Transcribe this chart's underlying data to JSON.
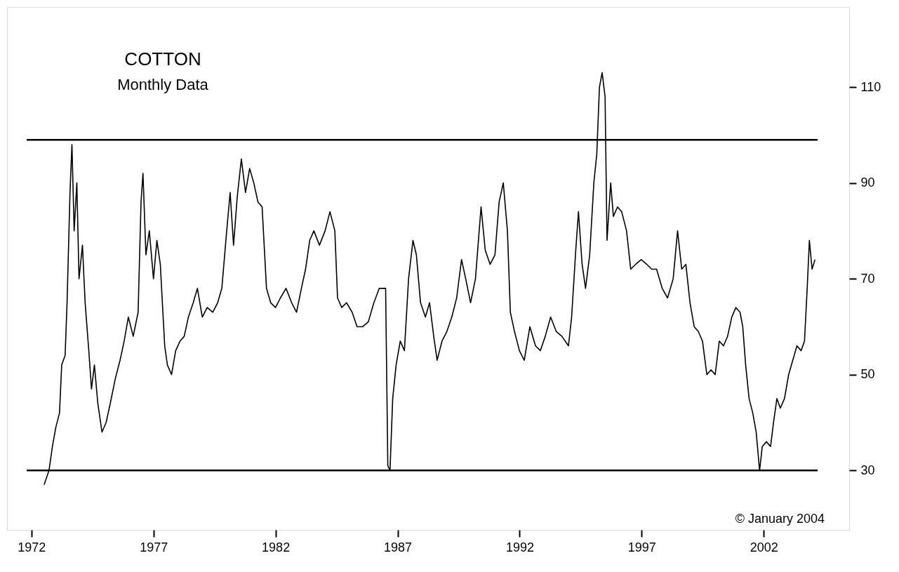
{
  "chart_data": {
    "type": "line",
    "title": "COTTON",
    "subtitle": "Monthly Data",
    "annotations": [
      "© January 2004"
    ],
    "x": [
      1972.52,
      1972.72,
      1972.86,
      1973.0,
      1973.15,
      1973.24,
      1973.38,
      1973.46,
      1973.58,
      1973.66,
      1973.75,
      1973.86,
      1973.95,
      1974.09,
      1974.2,
      1974.35,
      1974.46,
      1974.58,
      1974.72,
      1974.89,
      1975.06,
      1975.23,
      1975.43,
      1975.63,
      1975.8,
      1975.97,
      1976.17,
      1976.37,
      1976.49,
      1976.57,
      1976.69,
      1976.83,
      1977.0,
      1977.14,
      1977.28,
      1977.46,
      1977.57,
      1977.74,
      1977.91,
      1978.09,
      1978.26,
      1978.43,
      1978.63,
      1978.8,
      1979.0,
      1979.2,
      1979.43,
      1979.63,
      1979.8,
      1980.0,
      1980.14,
      1980.28,
      1980.43,
      1980.6,
      1980.77,
      1980.94,
      1981.11,
      1981.28,
      1981.45,
      1981.63,
      1981.8,
      1982.0,
      1982.2,
      1982.43,
      1982.66,
      1982.86,
      1983.06,
      1983.23,
      1983.4,
      1983.57,
      1983.8,
      1984.03,
      1984.23,
      1984.43,
      1984.54,
      1984.71,
      1984.91,
      1985.14,
      1985.34,
      1985.57,
      1985.8,
      1986.03,
      1986.25,
      1986.51,
      1986.6,
      1986.69,
      1986.8,
      1986.94,
      1987.11,
      1987.28,
      1987.45,
      1987.63,
      1987.77,
      1987.94,
      1988.14,
      1988.31,
      1988.48,
      1988.62,
      1988.82,
      1989.02,
      1989.22,
      1989.42,
      1989.62,
      1989.79,
      1989.99,
      1990.19,
      1990.42,
      1990.59,
      1990.79,
      1990.99,
      1991.16,
      1991.33,
      1991.5,
      1991.62,
      1991.79,
      1991.99,
      1992.19,
      1992.42,
      1992.65,
      1992.85,
      1993.05,
      1993.27,
      1993.5,
      1993.73,
      1994.0,
      1994.13,
      1994.3,
      1994.41,
      1994.56,
      1994.7,
      1994.87,
      1995.04,
      1995.16,
      1995.27,
      1995.38,
      1995.5,
      1995.58,
      1995.73,
      1995.84,
      1996.01,
      1996.18,
      1996.38,
      1996.55,
      1996.75,
      1996.98,
      1997.21,
      1997.41,
      1997.61,
      1997.84,
      1998.06,
      1998.29,
      1998.47,
      1998.64,
      1998.81,
      1998.98,
      1999.15,
      1999.32,
      1999.49,
      1999.67,
      1999.84,
      2000.01,
      2000.18,
      2000.35,
      2000.52,
      2000.69,
      2000.86,
      2001.03,
      2001.14,
      2001.26,
      2001.4,
      2001.55,
      2001.69,
      2001.83,
      2001.94,
      2002.11,
      2002.28,
      2002.4,
      2002.54,
      2002.68,
      2002.85,
      2003.02,
      2003.19,
      2003.36,
      2003.53,
      2003.67,
      2003.78,
      2003.87,
      2003.98,
      2004.1
    ],
    "series": [
      {
        "color": "#000000",
        "line_style": "solid",
        "values": [
          27,
          30,
          35,
          39,
          42,
          52,
          54,
          65,
          88,
          98,
          80,
          90,
          70,
          77,
          65,
          55,
          47,
          52,
          44,
          38,
          40,
          44,
          49,
          53,
          57,
          62,
          58,
          63,
          86,
          92,
          75,
          80,
          70,
          78,
          73,
          56,
          52,
          50,
          55,
          57,
          58,
          62,
          65,
          68,
          62,
          64,
          63,
          65,
          68,
          80,
          88,
          77,
          87,
          95,
          88,
          93,
          90,
          86,
          85,
          68,
          65,
          64,
          66,
          68,
          65,
          63,
          68,
          72,
          78,
          80,
          77,
          80,
          84,
          80,
          66,
          64,
          65,
          63,
          60,
          60,
          61,
          65,
          68,
          68,
          31,
          30,
          45,
          52,
          57,
          55,
          70,
          78,
          75,
          65,
          62,
          65,
          58,
          53,
          57,
          59,
          62,
          66,
          74,
          70,
          65,
          70,
          85,
          76,
          73,
          75,
          86,
          90,
          80,
          63,
          59,
          55,
          53,
          60,
          56,
          55,
          58,
          62,
          59,
          58,
          56,
          62,
          76,
          84,
          73,
          68,
          75,
          90,
          96,
          110,
          113,
          108,
          78,
          90,
          83,
          85,
          84,
          80,
          72,
          73,
          74,
          73,
          72,
          72,
          68,
          66,
          70,
          80,
          72,
          73,
          65,
          60,
          59,
          57,
          50,
          51,
          50,
          57,
          56,
          58,
          62,
          64,
          63,
          60,
          52,
          45,
          42,
          38,
          30,
          35,
          36,
          35,
          40,
          45,
          43,
          45,
          50,
          53,
          56,
          55,
          57,
          68,
          78,
          72,
          74
        ]
      }
    ],
    "xlim": [
      1971.0,
      2005.5
    ],
    "ylim": [
      17.6,
      126.7
    ],
    "xticks": [
      1972,
      1977,
      1982,
      1987,
      1992,
      1997,
      2002
    ],
    "yticks": [
      30,
      50,
      70,
      90,
      110
    ],
    "ref_lines": [
      {
        "axis": "y",
        "value": 99
      },
      {
        "axis": "y",
        "value": 30
      }
    ],
    "grid": false,
    "legend": false
  }
}
